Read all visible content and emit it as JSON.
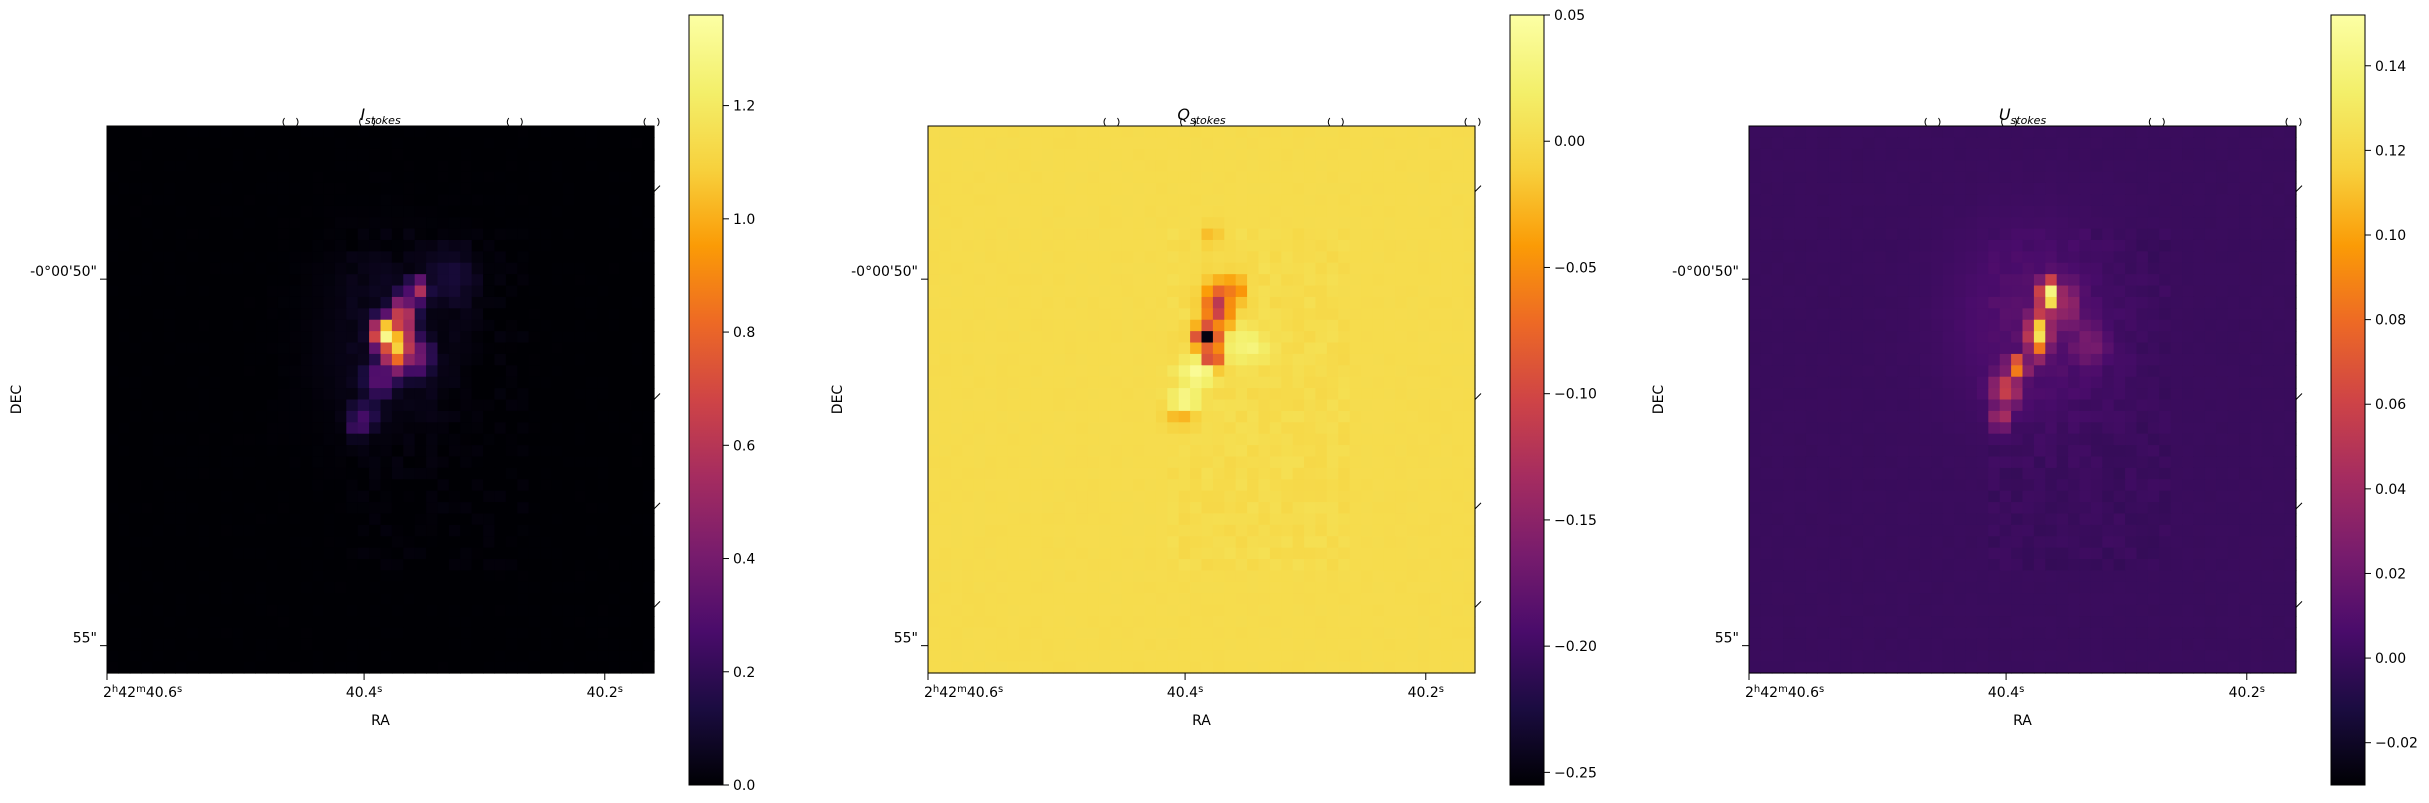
{
  "chart_data": [
    {
      "type": "heatmap",
      "title_main": "I",
      "title_sub": "stokes",
      "colormap": "inferno",
      "xlabel": "RA",
      "ylabel": "DEC",
      "x_ticks": [
        {
          "h": "2",
          "m": "42",
          "s": "40.6",
          "sup_h": "h",
          "sup_m": "m",
          "sup_s": "s"
        },
        {
          "s": "40.4",
          "sup_s": "s"
        },
        {
          "s": "40.2",
          "sup_s": "s"
        }
      ],
      "y_ticks": [
        "-0°00'50\"",
        "55\""
      ],
      "colorbar": {
        "ticks": [
          "0.0",
          "0.2",
          "0.4",
          "0.6",
          "0.8",
          "1.0",
          "1.2"
        ],
        "values": [
          0.0,
          0.2,
          0.4,
          0.6,
          0.8,
          1.0,
          1.2
        ],
        "range": [
          0.0,
          1.36
        ]
      },
      "background_value": 0.0,
      "source": [
        {
          "c": [
            0.51,
            0.38
          ],
          "r": [
            0.025,
            0.03
          ],
          "v": 1.36
        },
        {
          "c": [
            0.53,
            0.4
          ],
          "r": [
            0.03,
            0.05
          ],
          "v": 1.1
        },
        {
          "c": [
            0.54,
            0.35
          ],
          "r": [
            0.025,
            0.04
          ],
          "v": 0.75
        },
        {
          "c": [
            0.57,
            0.3
          ],
          "r": [
            0.02,
            0.025
          ],
          "v": 0.6
        },
        {
          "c": [
            0.56,
            0.42
          ],
          "r": [
            0.035,
            0.04
          ],
          "v": 0.45
        },
        {
          "c": [
            0.5,
            0.46
          ],
          "r": [
            0.03,
            0.04
          ],
          "v": 0.35
        },
        {
          "c": [
            0.47,
            0.53
          ],
          "r": [
            0.03,
            0.03
          ],
          "v": 0.25
        },
        {
          "c": [
            0.46,
            0.55
          ],
          "r": [
            0.02,
            0.02
          ],
          "v": 0.3
        },
        {
          "c": [
            0.63,
            0.28
          ],
          "r": [
            0.05,
            0.06
          ],
          "v": 0.12
        },
        {
          "c": [
            0.52,
            0.4
          ],
          "r": [
            0.12,
            0.16
          ],
          "v": 0.07
        },
        {
          "c": [
            0.5,
            0.3
          ],
          "r": [
            0.1,
            0.08
          ],
          "v": 0.05
        }
      ]
    },
    {
      "type": "heatmap",
      "title_main": "Q",
      "title_sub": "stokes",
      "colormap": "inferno",
      "xlabel": "RA",
      "ylabel": "DEC",
      "x_ticks": [
        {
          "h": "2",
          "m": "42",
          "s": "40.6",
          "sup_h": "h",
          "sup_m": "m",
          "sup_s": "s"
        },
        {
          "s": "40.4",
          "sup_s": "s"
        },
        {
          "s": "40.2",
          "sup_s": "s"
        }
      ],
      "y_ticks": [
        "-0°00'50\"",
        "55\""
      ],
      "colorbar": {
        "ticks": [
          "0.05",
          "0.00",
          "−0.05",
          "−0.10",
          "−0.15",
          "−0.20",
          "−0.25"
        ],
        "values": [
          0.05,
          0.0,
          -0.05,
          -0.1,
          -0.15,
          -0.2,
          -0.25
        ],
        "range": [
          -0.255,
          0.05
        ]
      },
      "background_value": 0.0,
      "source": [
        {
          "c": [
            0.51,
            0.385
          ],
          "r": [
            0.02,
            0.02
          ],
          "v": -0.25
        },
        {
          "c": [
            0.53,
            0.33
          ],
          "r": [
            0.025,
            0.04
          ],
          "v": -0.12
        },
        {
          "c": [
            0.56,
            0.3
          ],
          "r": [
            0.02,
            0.025
          ],
          "v": -0.07
        },
        {
          "c": [
            0.52,
            0.42
          ],
          "r": [
            0.015,
            0.02
          ],
          "v": -0.15
        },
        {
          "c": [
            0.49,
            0.45
          ],
          "r": [
            0.03,
            0.025
          ],
          "v": 0.045
        },
        {
          "c": [
            0.47,
            0.5
          ],
          "r": [
            0.025,
            0.025
          ],
          "v": 0.04
        },
        {
          "c": [
            0.46,
            0.53
          ],
          "r": [
            0.025,
            0.02
          ],
          "v": -0.03
        },
        {
          "c": [
            0.58,
            0.4
          ],
          "r": [
            0.04,
            0.03
          ],
          "v": 0.03
        },
        {
          "c": [
            0.52,
            0.2
          ],
          "r": [
            0.02,
            0.02
          ],
          "v": -0.025
        }
      ]
    },
    {
      "type": "heatmap",
      "title_main": "U",
      "title_sub": "stokes",
      "colormap": "inferno",
      "xlabel": "RA",
      "ylabel": "DEC",
      "x_ticks": [
        {
          "h": "2",
          "m": "42",
          "s": "40.6",
          "sup_h": "h",
          "sup_m": "m",
          "sup_s": "s"
        },
        {
          "s": "40.4",
          "sup_s": "s"
        },
        {
          "s": "40.2",
          "sup_s": "s"
        }
      ],
      "y_ticks": [
        "-0°00'50\"",
        "55\""
      ],
      "colorbar": {
        "ticks": [
          "0.14",
          "0.12",
          "0.10",
          "0.08",
          "0.06",
          "0.04",
          "0.02",
          "0.00",
          "−0.02"
        ],
        "values": [
          0.14,
          0.12,
          0.1,
          0.08,
          0.06,
          0.04,
          0.02,
          0.0,
          -0.02
        ],
        "range": [
          -0.03,
          0.152
        ]
      },
      "background_value": 0.0,
      "source": [
        {
          "c": [
            0.55,
            0.31
          ],
          "r": [
            0.02,
            0.03
          ],
          "v": 0.15
        },
        {
          "c": [
            0.53,
            0.38
          ],
          "r": [
            0.02,
            0.04
          ],
          "v": 0.13
        },
        {
          "c": [
            0.51,
            0.41
          ],
          "r": [
            0.015,
            0.02
          ],
          "v": -0.03
        },
        {
          "c": [
            0.49,
            0.44
          ],
          "r": [
            0.02,
            0.02
          ],
          "v": 0.1
        },
        {
          "c": [
            0.47,
            0.48
          ],
          "r": [
            0.03,
            0.035
          ],
          "v": 0.06
        },
        {
          "c": [
            0.46,
            0.53
          ],
          "r": [
            0.02,
            0.025
          ],
          "v": 0.05
        },
        {
          "c": [
            0.58,
            0.33
          ],
          "r": [
            0.03,
            0.05
          ],
          "v": 0.04
        },
        {
          "c": [
            0.62,
            0.4
          ],
          "r": [
            0.04,
            0.05
          ],
          "v": 0.025
        },
        {
          "c": [
            0.52,
            0.36
          ],
          "r": [
            0.14,
            0.16
          ],
          "v": 0.012
        }
      ]
    }
  ]
}
